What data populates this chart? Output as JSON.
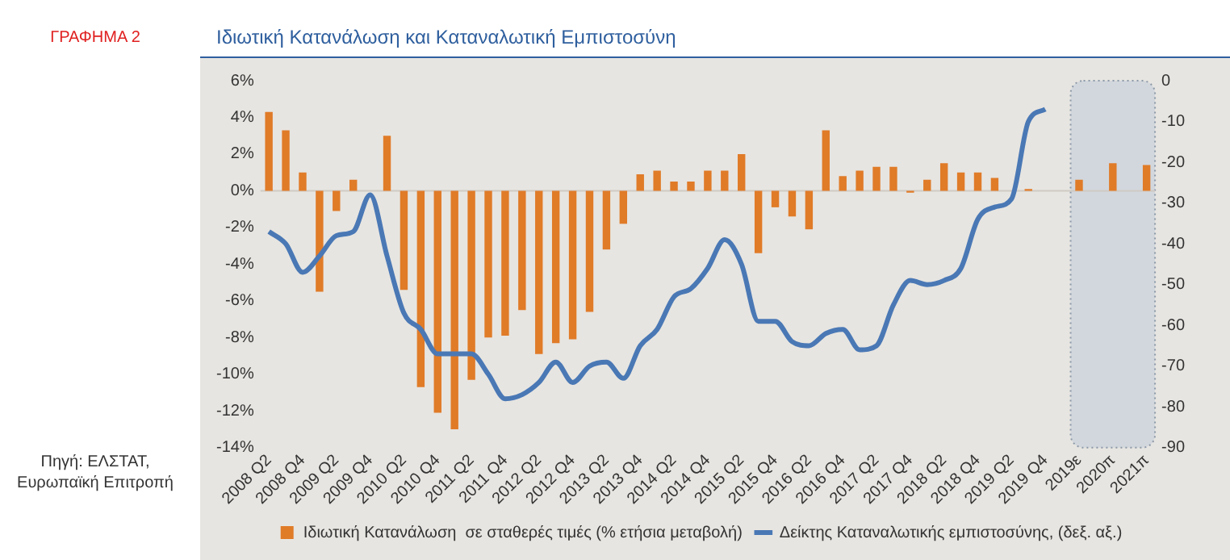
{
  "chart_data": {
    "type": "bar",
    "title": "Ιδιωτική Κατανάλωση και Καταναλωτική Εμπιστοσύνη",
    "annotations": [
      "ΓΡΑΦΗΜΑ 2",
      "Πηγή: ΕΛΣΤΑΤ, Ευρωπαϊκή Επιτροπή"
    ],
    "categories": [
      "2008 Q2",
      null,
      "2008 Q4",
      null,
      "2009 Q2",
      null,
      "2009 Q4",
      null,
      "2010 Q2",
      null,
      "2010 Q4",
      null,
      "2011 Q2",
      null,
      "2011 Q4",
      null,
      "2012 Q2",
      null,
      "2012 Q4",
      null,
      "2013 Q2",
      null,
      "2013 Q4",
      null,
      "2014 Q2",
      null,
      "2014 Q4",
      null,
      "2015 Q2",
      null,
      "2015 Q4",
      null,
      "2016 Q2",
      null,
      "2016 Q4",
      null,
      "2017 Q2",
      null,
      "2017 Q4",
      null,
      "2018 Q2",
      null,
      "2018 Q4",
      null,
      "2019 Q2",
      null,
      "2019 Q4",
      null,
      "2019ε",
      null,
      "2020π",
      null,
      "2021π"
    ],
    "series": [
      {
        "name": "Ιδιωτική Κατανάλωση  σε σταθερές τιμές (% ετήσια μεταβολή)",
        "color": "#e07b28",
        "values": [
          4.3,
          3.3,
          1.0,
          -5.5,
          -1.1,
          0.6,
          0,
          3.0,
          -5.4,
          -10.7,
          -12.1,
          -13.0,
          -10.3,
          -8.0,
          -7.9,
          -6.5,
          -8.9,
          -8.3,
          -8.1,
          -6.6,
          -3.2,
          -1.8,
          0.9,
          1.1,
          0.5,
          0.5,
          1.1,
          1.1,
          2.0,
          -3.4,
          -0.9,
          -1.4,
          -2.1,
          3.3,
          0.8,
          1.1,
          1.3,
          1.3,
          -0.1,
          0.6,
          1.5,
          1.0,
          1.0,
          0.7,
          0,
          0.1,
          null,
          null,
          0.6,
          null,
          1.5,
          null,
          1.4
        ]
      },
      {
        "name": "Δείκτης Καταναλωτικής εμπιστοσύνης, (δεξ. αξ.)",
        "type": "line",
        "axis": "y2",
        "color": "#4a78b5",
        "values": [
          -37,
          -40,
          -47,
          -43,
          -38,
          -37,
          -28,
          -43,
          -57,
          -61,
          -67,
          -67,
          -67,
          -72,
          -78,
          -77,
          -74,
          -69,
          -74,
          -70,
          -69,
          -73,
          -65,
          -61,
          -53,
          -51,
          -46,
          -39,
          -45,
          -59,
          -59,
          -64,
          -65,
          -62,
          -61,
          -66,
          -65,
          -55,
          -49,
          -50,
          -49,
          -46,
          -34,
          -31,
          -29,
          -10,
          -7,
          null,
          null,
          null,
          null,
          null,
          null
        ]
      }
    ],
    "ylim": [
      -14,
      6
    ],
    "yticks": [
      {
        "value": -14,
        "label": "-14%"
      },
      {
        "value": -12,
        "label": "-12%"
      },
      {
        "value": -10,
        "label": "-10%"
      },
      {
        "value": -8,
        "label": "-8%"
      },
      {
        "value": -6,
        "label": "-6%"
      },
      {
        "value": -4,
        "label": "-4%"
      },
      {
        "value": -2,
        "label": "-2%"
      },
      {
        "value": 0,
        "label": "0%"
      },
      {
        "value": 2,
        "label": "2%"
      },
      {
        "value": 4,
        "label": "4%"
      },
      {
        "value": 6,
        "label": "6%"
      }
    ],
    "y2lim": [
      -90,
      0
    ],
    "y2ticks": [
      -90,
      -80,
      -70,
      -60,
      -50,
      -40,
      -30,
      -20,
      -10,
      0
    ],
    "ref_lines": [
      {
        "axis": "y",
        "value": 0,
        "color": "#cfcac4"
      }
    ],
    "bands": [
      {
        "axis": "x",
        "from": "2019ε",
        "to": "2021π",
        "color": "#d2d7dd"
      }
    ],
    "grid": false,
    "legend": "bottom"
  }
}
